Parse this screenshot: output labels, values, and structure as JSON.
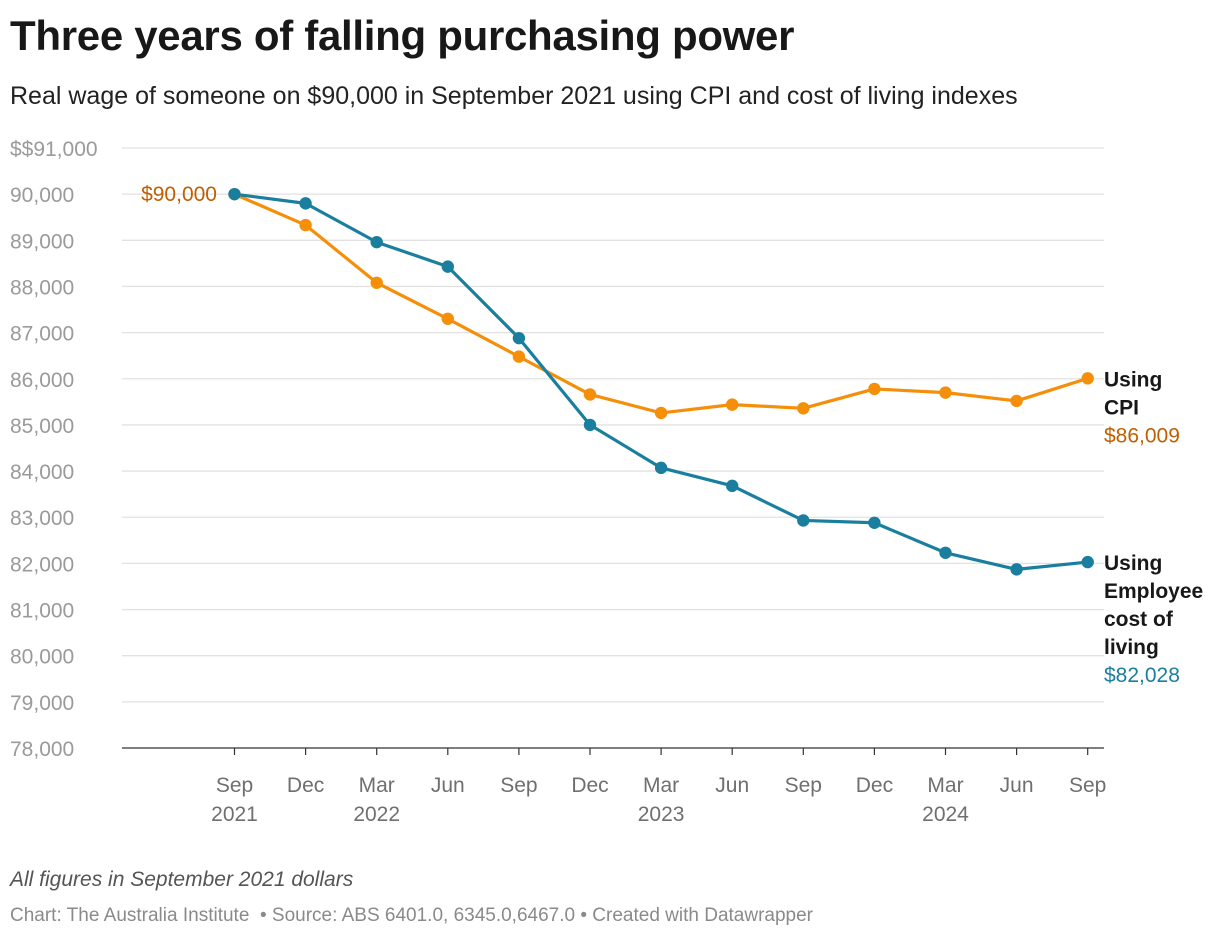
{
  "header": {
    "title": "Three years of falling purchasing power",
    "subtitle": "Real wage of someone on $90,000 in September 2021 using CPI and cost of living indexes"
  },
  "chart_data": {
    "type": "line",
    "ylim": [
      78000,
      91000
    ],
    "yticks": [
      {
        "value": 91000,
        "label": "$$91,000"
      },
      {
        "value": 90000,
        "label": "90,000"
      },
      {
        "value": 89000,
        "label": "89,000"
      },
      {
        "value": 88000,
        "label": "88,000"
      },
      {
        "value": 87000,
        "label": "87,000"
      },
      {
        "value": 86000,
        "label": "86,000"
      },
      {
        "value": 85000,
        "label": "85,000"
      },
      {
        "value": 84000,
        "label": "84,000"
      },
      {
        "value": 83000,
        "label": "83,000"
      },
      {
        "value": 82000,
        "label": "82,000"
      },
      {
        "value": 81000,
        "label": "81,000"
      },
      {
        "value": 80000,
        "label": "80,000"
      },
      {
        "value": 79000,
        "label": "79,000"
      },
      {
        "value": 78000,
        "label": "78,000"
      }
    ],
    "x": [
      "Sep 2021",
      "Dec 2021",
      "Mar 2022",
      "Jun 2022",
      "Sep 2022",
      "Dec 2022",
      "Mar 2023",
      "Jun 2023",
      "Sep 2023",
      "Dec 2023",
      "Mar 2024",
      "Jun 2024",
      "Sep 2024"
    ],
    "xtick_labels": [
      {
        "month": "Sep",
        "year": "2021"
      },
      {
        "month": "Dec",
        "year": ""
      },
      {
        "month": "Mar",
        "year": "2022"
      },
      {
        "month": "Jun",
        "year": ""
      },
      {
        "month": "Sep",
        "year": ""
      },
      {
        "month": "Dec",
        "year": ""
      },
      {
        "month": "Mar",
        "year": "2023"
      },
      {
        "month": "Jun",
        "year": ""
      },
      {
        "month": "Sep",
        "year": ""
      },
      {
        "month": "Dec",
        "year": ""
      },
      {
        "month": "Mar",
        "year": "2024"
      },
      {
        "month": "Jun",
        "year": ""
      },
      {
        "month": "Sep",
        "year": ""
      }
    ],
    "grid": true,
    "start_label": "$90,000",
    "series": [
      {
        "name": "Using CPI",
        "label_lines": [
          "Using",
          "CPI"
        ],
        "end_value_label": "$86,009",
        "color": "#f58f0a",
        "label_color": "#c05f00",
        "values": [
          90000,
          89330,
          88080,
          87300,
          86480,
          85660,
          85260,
          85440,
          85360,
          85780,
          85700,
          85520,
          86009
        ]
      },
      {
        "name": "Using Employee cost of living",
        "label_lines": [
          "Using",
          "Employee",
          "cost of",
          "living"
        ],
        "end_value_label": "$82,028",
        "color": "#1a7f9f",
        "label_color": "#1a7f9f",
        "values": [
          90000,
          89800,
          88960,
          88430,
          86880,
          85000,
          84070,
          83680,
          82930,
          82880,
          82230,
          81870,
          82028
        ]
      }
    ]
  },
  "notes": {
    "description": "All figures in September 2021 dollars",
    "credit": "Chart: The Australia Institute",
    "source": "Source: ABS 6401.0, 6345.0,6467.0",
    "created_with": "Created with Datawrapper"
  }
}
